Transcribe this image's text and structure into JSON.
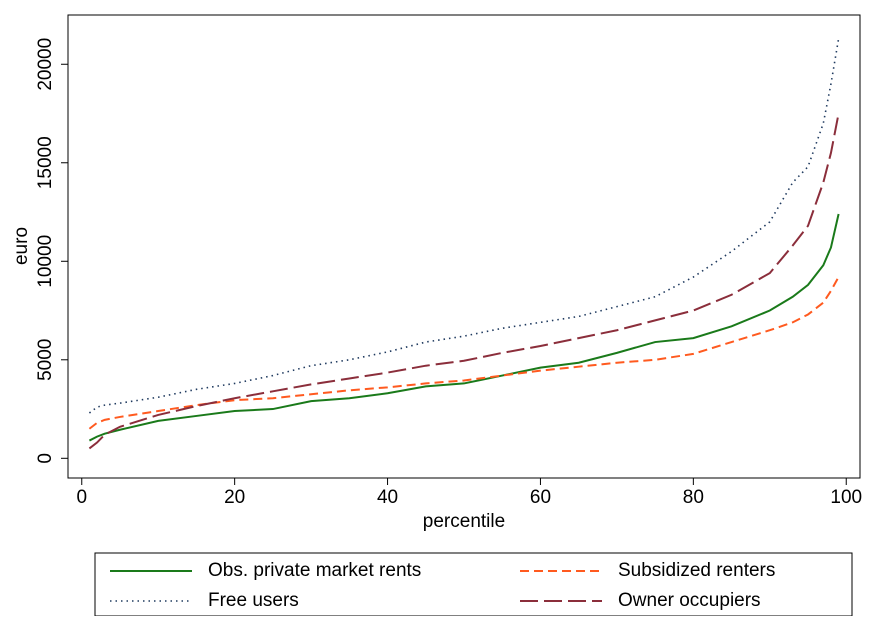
{
  "chart_data": {
    "type": "line",
    "x_label": "percentile",
    "y_label": "euro",
    "x": [
      1,
      2,
      3,
      5,
      10,
      15,
      20,
      25,
      30,
      35,
      40,
      45,
      50,
      55,
      60,
      65,
      70,
      75,
      80,
      85,
      90,
      93,
      95,
      97,
      98,
      99
    ],
    "series": [
      {
        "name": "Obs. private market rents",
        "color": "#1a7a1a",
        "style": "solid",
        "values": [
          900,
          1100,
          1250,
          1450,
          1900,
          2150,
          2400,
          2500,
          2900,
          3050,
          3300,
          3650,
          3800,
          4200,
          4600,
          4850,
          5350,
          5900,
          6100,
          6700,
          7500,
          8200,
          8800,
          9800,
          10700,
          12400
        ]
      },
      {
        "name": "Subsidized renters",
        "color": "#ff5a1f",
        "style": "dash",
        "values": [
          1500,
          1800,
          1950,
          2100,
          2400,
          2700,
          2950,
          3050,
          3250,
          3450,
          3600,
          3800,
          3950,
          4200,
          4450,
          4650,
          4850,
          5000,
          5300,
          5900,
          6500,
          6900,
          7300,
          7900,
          8500,
          9200
        ]
      },
      {
        "name": "Free users",
        "color": "#1f3a5f",
        "style": "dot",
        "values": [
          2300,
          2600,
          2700,
          2800,
          3100,
          3500,
          3800,
          4200,
          4700,
          5000,
          5400,
          5900,
          6200,
          6600,
          6900,
          7200,
          7700,
          8200,
          9200,
          10500,
          12000,
          14000,
          14800,
          17000,
          19000,
          21300
        ]
      },
      {
        "name": "Owner occupiers",
        "color": "#8b2e3b",
        "style": "longdash",
        "values": [
          500,
          800,
          1200,
          1600,
          2200,
          2650,
          3050,
          3400,
          3750,
          4050,
          4350,
          4700,
          4950,
          5350,
          5700,
          6100,
          6500,
          7000,
          7500,
          8300,
          9400,
          10800,
          11800,
          14000,
          15500,
          17500
        ]
      }
    ],
    "xlim": [
      -1.8,
      101.8
    ],
    "xticks": [
      0,
      20,
      40,
      60,
      80,
      100
    ],
    "ylim": [
      -1000,
      22500
    ],
    "yticks": [
      0,
      5000,
      10000,
      15000,
      20000
    ],
    "grid": false,
    "legend": "bottom"
  }
}
